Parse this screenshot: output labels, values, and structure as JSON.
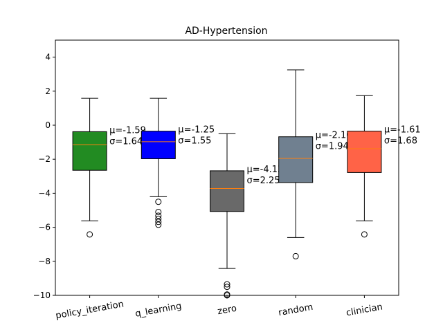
{
  "chart_data": {
    "type": "box",
    "title": "AD-Hypertension",
    "xlabel": "",
    "ylabel": "",
    "ylim": [
      -10,
      5
    ],
    "yticks": [
      -10,
      -8,
      -6,
      -4,
      -2,
      0,
      2,
      4
    ],
    "grid": false,
    "legend": "none",
    "median_color": "#ff7f0e",
    "categories": [
      "policy_iteration",
      "q_learning",
      "zero",
      "random",
      "clinician"
    ],
    "series": [
      {
        "category": "policy_iteration",
        "color": "#228b22",
        "q1": -2.65,
        "median": -1.15,
        "q3": -0.38,
        "whisker_low": -5.62,
        "whisker_high": 1.58,
        "outliers": [
          -6.42
        ],
        "annotation_mean": "μ=-1.59",
        "annotation_std": "σ=1.64"
      },
      {
        "category": "q_learning",
        "color": "#0000ff",
        "q1": -1.97,
        "median": -0.97,
        "q3": -0.35,
        "whisker_low": -4.2,
        "whisker_high": 1.58,
        "outliers": [
          -4.5,
          -5.1,
          -5.32,
          -5.5,
          -5.68,
          -5.85
        ],
        "annotation_mean": "μ=-1.25",
        "annotation_std": "σ=1.55"
      },
      {
        "category": "zero",
        "color": "#696969",
        "q1": -5.07,
        "median": -3.72,
        "q3": -2.68,
        "whisker_low": -8.42,
        "whisker_high": -0.5,
        "outliers": [
          -9.35,
          -9.5,
          -9.95,
          -10.0
        ],
        "annotation_mean": "μ=-4.13",
        "annotation_std": "σ=2.25"
      },
      {
        "category": "random",
        "color": "#708090",
        "q1": -3.37,
        "median": -1.95,
        "q3": -0.68,
        "whisker_low": -6.6,
        "whisker_high": 3.25,
        "outliers": [
          -7.7
        ],
        "annotation_mean": "μ=-2.10",
        "annotation_std": "σ=1.94"
      },
      {
        "category": "clinician",
        "color": "#ff6347",
        "q1": -2.78,
        "median": -1.38,
        "q3": -0.35,
        "whisker_low": -5.62,
        "whisker_high": 1.74,
        "outliers": [
          -6.42
        ],
        "annotation_mean": "μ=-1.61",
        "annotation_std": "σ=1.68"
      }
    ]
  }
}
